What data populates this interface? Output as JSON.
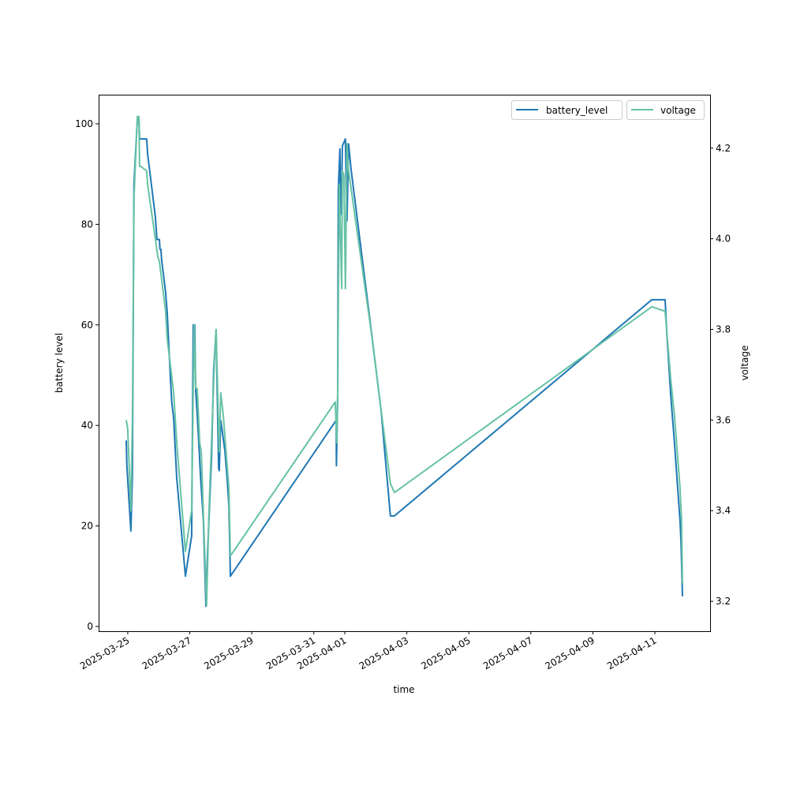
{
  "chart_data": {
    "type": "line",
    "title": "",
    "xlabel": "time",
    "ylabel_left": "battery level",
    "ylabel_right": "voltage",
    "x_unit": "days since 2025-03-25 00:00",
    "xlim": [
      -0.94,
      18.78
    ],
    "ylim_left": [
      -0.94,
      105.8
    ],
    "ylim_right": [
      3.134,
      4.318
    ],
    "x_ticks": [
      {
        "day": 0,
        "label": "2025-03-25"
      },
      {
        "day": 2,
        "label": "2025-03-27"
      },
      {
        "day": 4,
        "label": "2025-03-29"
      },
      {
        "day": 6,
        "label": "2025-03-31"
      },
      {
        "day": 7,
        "label": "2025-04-01"
      },
      {
        "day": 9,
        "label": "2025-04-03"
      },
      {
        "day": 11,
        "label": "2025-04-05"
      },
      {
        "day": 13,
        "label": "2025-04-07"
      },
      {
        "day": 15,
        "label": "2025-04-09"
      },
      {
        "day": 17,
        "label": "2025-04-11"
      }
    ],
    "y_ticks_left": [
      0,
      20,
      40,
      60,
      80,
      100
    ],
    "y_ticks_right": [
      "3.2",
      "3.4",
      "3.6",
      "3.8",
      "4.0",
      "4.2"
    ],
    "grid": false,
    "legends": [
      {
        "label": "battery_level",
        "color": "#1f77b4",
        "placement": "top-right"
      },
      {
        "label": "voltage",
        "color": "#66c2a5",
        "placement": "top-right"
      }
    ],
    "series": [
      {
        "name": "battery_level",
        "axis": "left",
        "color": "#1f77b4",
        "x": [
          -0.05,
          -0.03,
          0.05,
          0.1,
          0.15,
          0.2,
          0.31,
          0.36,
          0.38,
          0.61,
          0.64,
          0.89,
          0.94,
          1.02,
          1.04,
          1.07,
          1.09,
          1.22,
          1.27,
          1.37,
          1.42,
          1.48,
          1.58,
          1.86,
          2.06,
          2.11,
          2.16,
          2.19,
          2.24,
          2.29,
          2.34,
          2.44,
          2.52,
          2.57,
          2.7,
          2.77,
          2.85,
          2.93,
          2.95,
          3.0,
          3.13,
          3.21,
          3.26,
          3.31,
          6.72,
          6.73,
          6.77,
          6.79,
          6.84,
          6.87,
          6.9,
          6.92,
          7.02,
          7.05,
          7.07,
          7.12,
          7.2,
          7.84,
          8.17,
          8.47,
          8.6,
          16.9,
          17.33,
          17.38,
          17.51,
          17.63,
          17.81,
          17.84,
          17.89
        ],
        "y": [
          37,
          32,
          24,
          19,
          30,
          88,
          101,
          101,
          97,
          97,
          94,
          81.5,
          77,
          77,
          75,
          75,
          73,
          66.5,
          62.5,
          50,
          44.6,
          41.4,
          29.5,
          10,
          18,
          60,
          60,
          47,
          42,
          36.7,
          30.5,
          21,
          4,
          14,
          33.6,
          51,
          59,
          31.4,
          31,
          41,
          35,
          29,
          24,
          10,
          41,
          32,
          46,
          87,
          95,
          82,
          87,
          95.6,
          97,
          85,
          80.7,
          96,
          91,
          59.4,
          43,
          22,
          22,
          65,
          65,
          58.7,
          46,
          36.6,
          21,
          17,
          6
        ]
      },
      {
        "name": "voltage",
        "axis": "right",
        "color": "#66c2a5",
        "x": [
          -0.05,
          0,
          0.1,
          0.15,
          0.2,
          0.31,
          0.36,
          0.38,
          0.41,
          0.61,
          0.64,
          0.97,
          1.02,
          1.22,
          1.27,
          1.48,
          1.58,
          1.86,
          2.06,
          2.14,
          2.19,
          2.24,
          2.32,
          2.37,
          2.54,
          2.62,
          2.8,
          2.85,
          2.95,
          3.0,
          3.08,
          3.26,
          3.31,
          6.69,
          6.74,
          6.77,
          6.82,
          6.9,
          6.92,
          6.97,
          7.02,
          7.07,
          7.12,
          7.84,
          8.47,
          8.6,
          16.9,
          17.33,
          17.51,
          17.63,
          17.81,
          17.86,
          17.89
        ],
        "y": [
          3.6,
          3.58,
          3.4,
          3.6,
          4.09,
          4.27,
          4.27,
          4.16,
          4.16,
          4.15,
          4.12,
          3.96,
          3.95,
          3.84,
          3.78,
          3.66,
          3.55,
          3.31,
          3.4,
          3.81,
          3.67,
          3.67,
          3.55,
          3.53,
          3.19,
          3.4,
          3.74,
          3.8,
          3.53,
          3.66,
          3.61,
          3.45,
          3.3,
          3.64,
          3.55,
          3.66,
          4.12,
          3.89,
          4.15,
          4.14,
          3.89,
          4.21,
          4.15,
          3.8,
          3.46,
          3.44,
          3.85,
          3.84,
          3.69,
          3.61,
          3.45,
          3.38,
          3.24
        ]
      }
    ]
  }
}
